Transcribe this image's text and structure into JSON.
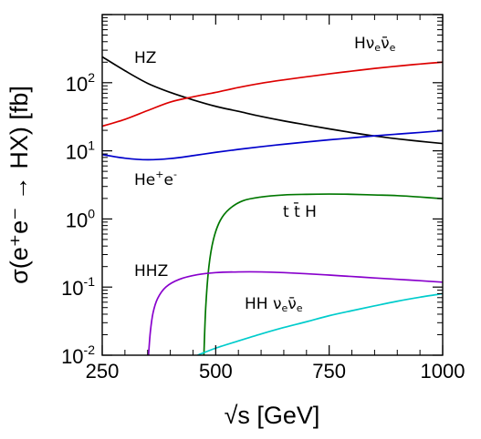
{
  "chart_data": {
    "type": "line",
    "xlabel": "√s [GeV]",
    "ylabel": "σ(e⁺e⁻ → HX) [fb]",
    "xlim": [
      250,
      1000
    ],
    "ylim": [
      0.01,
      1000
    ],
    "y_scale": "log",
    "grid": false,
    "x_ticks": [
      {
        "value": 250,
        "label": "250"
      },
      {
        "value": 500,
        "label": "500"
      },
      {
        "value": 750,
        "label": "750"
      },
      {
        "value": 1000,
        "label": "1000"
      }
    ],
    "y_ticks": [
      {
        "value": 0.01,
        "base": "10",
        "exp": "-2"
      },
      {
        "value": 0.1,
        "base": "10",
        "exp": "-1"
      },
      {
        "value": 1,
        "base": "10",
        "exp": "0"
      },
      {
        "value": 10,
        "base": "10",
        "exp": "1"
      },
      {
        "value": 100,
        "base": "10",
        "exp": "2"
      }
    ],
    "series": [
      {
        "id": "hz",
        "name": "HZ",
        "color": "#000000",
        "x": [
          250,
          300,
          350,
          400,
          450,
          500,
          550,
          600,
          650,
          700,
          750,
          800,
          850,
          900,
          950,
          1000
        ],
        "y": [
          240,
          150,
          98,
          72,
          56,
          45,
          38,
          32,
          27.5,
          24,
          21,
          18.5,
          16.5,
          15,
          13.8,
          12.8
        ]
      },
      {
        "id": "hnn",
        "name": "Hνₑν̄ₑ",
        "color": "#dd0000",
        "x": [
          250,
          300,
          350,
          400,
          450,
          500,
          550,
          600,
          650,
          700,
          750,
          800,
          850,
          900,
          950,
          1000
        ],
        "y": [
          23,
          29,
          39,
          52,
          62,
          72,
          85,
          98,
          110,
          122,
          135,
          148,
          162,
          175,
          188,
          200
        ]
      },
      {
        "id": "hee",
        "name": "He⁺e⁻",
        "color": "#0000cc",
        "x": [
          250,
          300,
          350,
          400,
          450,
          500,
          550,
          600,
          650,
          700,
          750,
          800,
          850,
          900,
          950,
          1000
        ],
        "y": [
          8.8,
          7.8,
          7.4,
          7.7,
          8.5,
          9.5,
          10.5,
          11.5,
          12.5,
          13.5,
          14.5,
          15.5,
          16.6,
          17.6,
          18.6,
          19.8
        ]
      },
      {
        "id": "tth",
        "name": "t t̄ H",
        "color": "#007700",
        "x": [
          474,
          478,
          485,
          495,
          510,
          530,
          560,
          600,
          650,
          700,
          750,
          800,
          850,
          900,
          950,
          1000
        ],
        "y": [
          0.01,
          0.05,
          0.2,
          0.5,
          0.95,
          1.4,
          1.85,
          2.1,
          2.25,
          2.3,
          2.32,
          2.3,
          2.25,
          2.2,
          2.1,
          1.98
        ]
      },
      {
        "id": "hhz",
        "name": "HHZ",
        "color": "#8800cc",
        "x": [
          352,
          356,
          362,
          372,
          390,
          420,
          460,
          500,
          550,
          600,
          650,
          700,
          750,
          800,
          850,
          900,
          950,
          1000
        ],
        "y": [
          0.01,
          0.022,
          0.042,
          0.068,
          0.1,
          0.13,
          0.152,
          0.163,
          0.167,
          0.167,
          0.163,
          0.157,
          0.15,
          0.143,
          0.136,
          0.13,
          0.124,
          0.118
        ]
      },
      {
        "id": "hhnn",
        "name": "HHνₑν̄ₑ",
        "color": "#00cccc",
        "x": [
          460,
          500,
          550,
          600,
          650,
          700,
          750,
          800,
          850,
          900,
          950,
          1000
        ],
        "y": [
          0.01,
          0.0127,
          0.0162,
          0.0205,
          0.0255,
          0.031,
          0.038,
          0.045,
          0.053,
          0.062,
          0.071,
          0.08
        ]
      }
    ]
  }
}
